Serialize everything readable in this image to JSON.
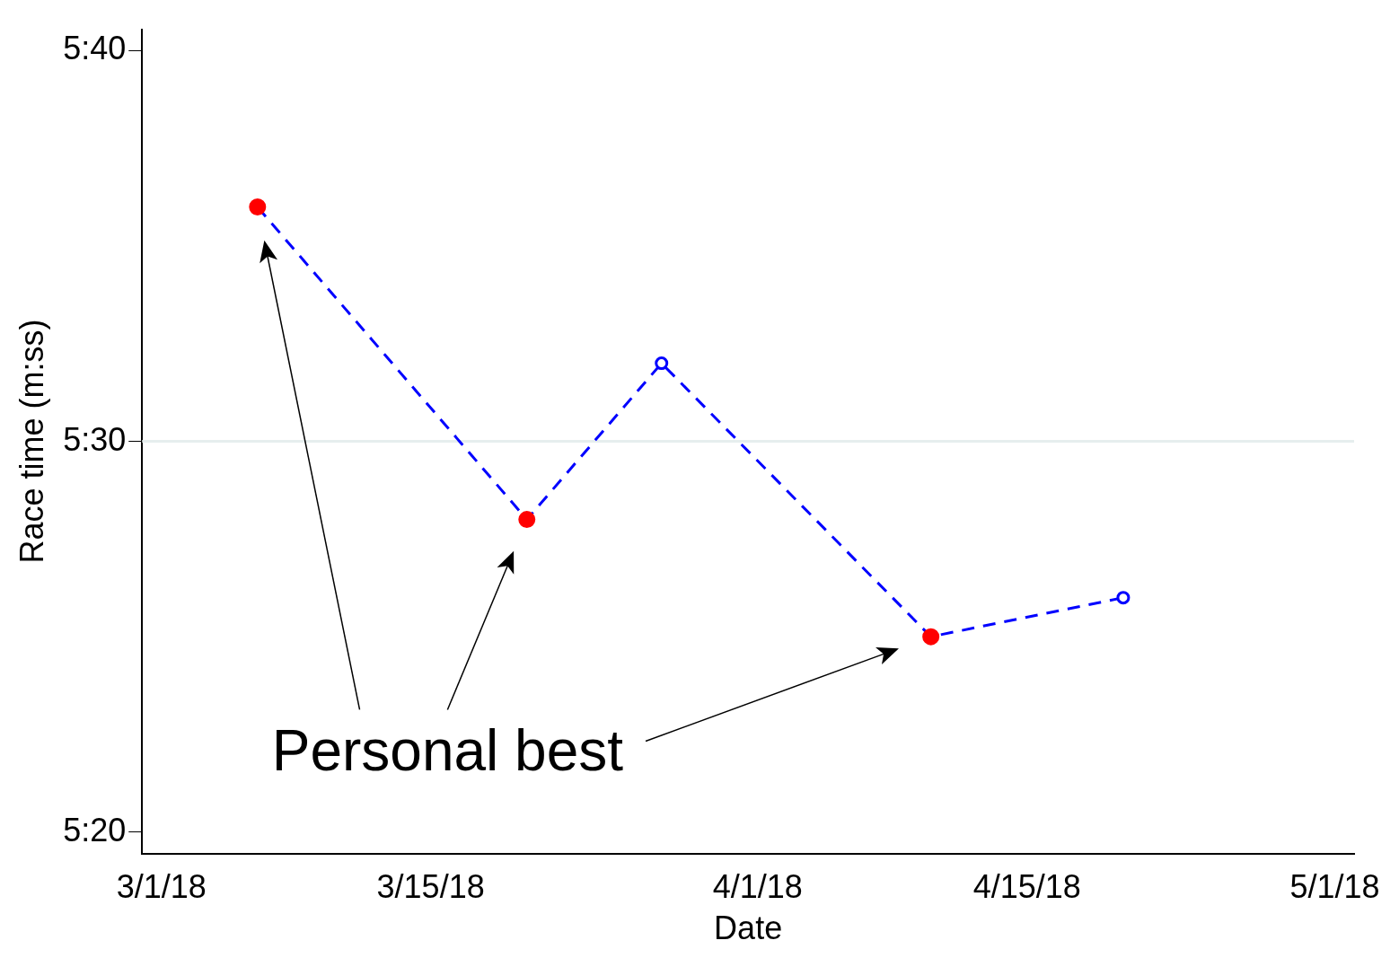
{
  "chart_data": {
    "type": "line",
    "xlabel": "Date",
    "ylabel": "Race time (m:ss)",
    "xlim": [
      "2018-02-28",
      "2018-05-02"
    ],
    "xticks": [
      {
        "value": "2018-03-01",
        "label": "3/1/18"
      },
      {
        "value": "2018-03-15",
        "label": "3/15/18"
      },
      {
        "value": "2018-04-01",
        "label": "4/1/18"
      },
      {
        "value": "2018-04-15",
        "label": "4/15/18"
      },
      {
        "value": "2018-05-01",
        "label": "5/1/18"
      }
    ],
    "ylim": [
      319.45,
      340.55
    ],
    "yticks": [
      {
        "value": 320,
        "label": "5:20"
      },
      {
        "value": 330,
        "label": "5:30"
      },
      {
        "value": 340,
        "label": "5:40"
      }
    ],
    "ref_lines": [
      {
        "axis": "y",
        "value": 330,
        "color": "#e6eeee"
      }
    ],
    "legend": false,
    "annotations": [
      "Personal best"
    ],
    "series": [
      {
        "type": "line",
        "color": "#0000ff",
        "line_style": "dashed",
        "marker": "circle",
        "x": [
          "2018-03-06",
          "2018-03-20",
          "2018-03-27",
          "2018-04-10",
          "2018-04-20"
        ],
        "values": [
          336,
          328,
          332,
          325,
          326
        ]
      },
      {
        "type": "scatter",
        "color": "#ff0000",
        "marker": "circle",
        "x": [
          "2018-03-06",
          "2018-03-20",
          "2018-04-10"
        ],
        "values": [
          336,
          328,
          325
        ]
      }
    ]
  }
}
